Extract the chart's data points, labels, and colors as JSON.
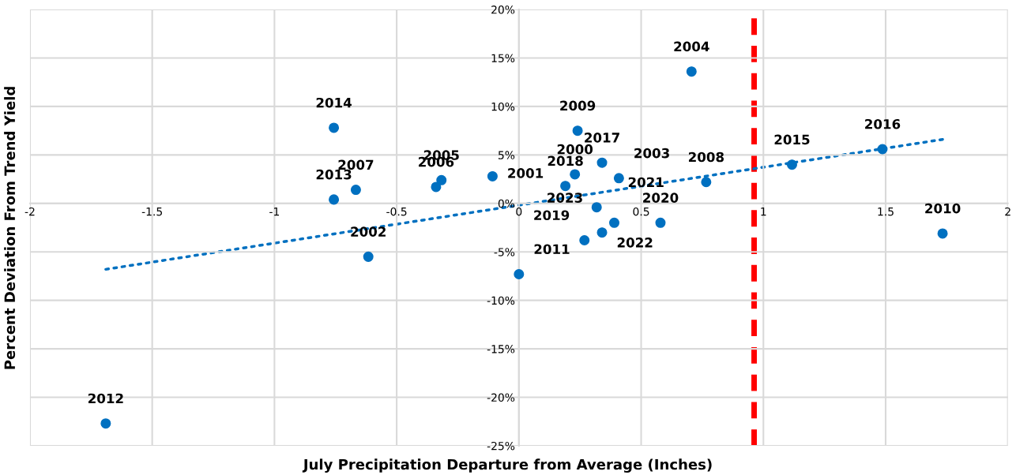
{
  "chart_data": {
    "type": "scatter",
    "xlabel": "July Precipitation Departure from Average (Inches)",
    "ylabel": "Percent Deviation From Trend Yield",
    "xlim": [
      -2,
      2
    ],
    "xticks": [
      -2,
      -1.5,
      -1,
      -0.5,
      0,
      0.5,
      1,
      1.5,
      2
    ],
    "ylim": [
      -25,
      20
    ],
    "yticks": [
      {
        "value": -25,
        "label": "-25%"
      },
      {
        "value": -20,
        "label": "-20%"
      },
      {
        "value": -15,
        "label": "-15%"
      },
      {
        "value": -10,
        "label": "-10%"
      },
      {
        "value": -5,
        "label": "-5%"
      },
      {
        "value": 0,
        "label": "0%"
      },
      {
        "value": 5,
        "label": "5%"
      },
      {
        "value": 10,
        "label": "10%"
      },
      {
        "value": 15,
        "label": "15%"
      },
      {
        "value": 20,
        "label": "20%"
      }
    ],
    "grid": true,
    "marker": "circle",
    "series": [
      {
        "color": "#0070c0",
        "x": [
          -0.108,
          -0.616,
          0.409,
          0.706,
          -0.317,
          -0.339,
          -0.667,
          0.766,
          0.24,
          1.733,
          0,
          -1.69,
          -0.757,
          -0.757,
          1.117,
          1.487,
          0.34,
          0.19,
          0.268,
          0.579,
          0.318,
          0.34,
          0.39,
          0.229
        ],
        "values": [
          2.8,
          -5.5,
          2.6,
          13.6,
          2.4,
          1.7,
          1.4,
          2.2,
          7.5,
          -3.1,
          -7.3,
          -22.7,
          0.4,
          7.8,
          4.0,
          5.6,
          4.2,
          1.8,
          -3.8,
          -2.0,
          -0.4,
          -3.0,
          -2.0,
          3.0
        ]
      },
      {
        "type": "line",
        "line_style": "dotted",
        "marker": "none",
        "color": "#0070c0",
        "x": [
          -1.69,
          1.733
        ],
        "values": [
          -6.8,
          6.6
        ]
      }
    ],
    "ref_lines": [
      {
        "axis": "x",
        "value": 0.962,
        "color": "#ff0000",
        "line_style": "dashed"
      }
    ],
    "annotations": [
      {
        "text": "2001",
        "x": -0.108,
        "y": 2.8
      },
      {
        "text": "2002",
        "x": -0.616,
        "y": -5.5
      },
      {
        "text": "2003",
        "x": 0.409,
        "y": 2.6
      },
      {
        "text": "2004",
        "x": 0.706,
        "y": 13.6
      },
      {
        "text": "2005",
        "x": -0.317,
        "y": 2.4
      },
      {
        "text": "2006",
        "x": -0.339,
        "y": 1.7
      },
      {
        "text": "2007",
        "x": -0.667,
        "y": 1.4
      },
      {
        "text": "2008",
        "x": 0.766,
        "y": 2.2
      },
      {
        "text": "2009",
        "x": 0.24,
        "y": 7.5
      },
      {
        "text": "2010",
        "x": 1.733,
        "y": -3.1
      },
      {
        "text": "2011",
        "x": 0,
        "y": -7.3
      },
      {
        "text": "2012",
        "x": -1.69,
        "y": -22.7
      },
      {
        "text": "2013",
        "x": -0.757,
        "y": 0.4
      },
      {
        "text": "2014",
        "x": -0.757,
        "y": 7.8
      },
      {
        "text": "2015",
        "x": 1.117,
        "y": 4.0
      },
      {
        "text": "2016",
        "x": 1.487,
        "y": 5.6
      },
      {
        "text": "2017",
        "x": 0.34,
        "y": 4.2
      },
      {
        "text": "2018",
        "x": 0.19,
        "y": 1.8
      },
      {
        "text": "2019",
        "x": 0.268,
        "y": -3.8
      },
      {
        "text": "2020",
        "x": 0.579,
        "y": -2.0
      },
      {
        "text": "2021",
        "x": 0.318,
        "y": -0.4
      },
      {
        "text": "2022",
        "x": 0.34,
        "y": -3.0
      },
      {
        "text": "2023",
        "x": 0.39,
        "y": -2.0
      },
      {
        "text": "2000",
        "x": 0.229,
        "y": 3.0
      }
    ]
  }
}
